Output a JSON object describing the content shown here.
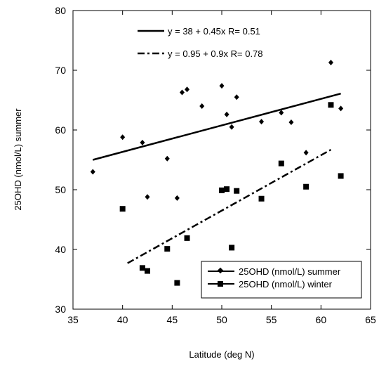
{
  "chart_data": {
    "type": "scatter",
    "xlabel": "Latitude (deg N)",
    "ylabel": "25OHD (nmol/L) summer",
    "xlim": [
      35,
      65
    ],
    "ylim": [
      30,
      80
    ],
    "xticks": [
      "35",
      "40",
      "45",
      "50",
      "55",
      "60",
      "65"
    ],
    "yticks": [
      "30",
      "40",
      "50",
      "60",
      "70",
      "80"
    ],
    "grid": false,
    "series": [
      {
        "name": "25OHD (nmol/L) summer",
        "marker": "diamond",
        "color": "#000000",
        "points": [
          [
            37,
            53.0
          ],
          [
            40,
            58.8
          ],
          [
            42,
            57.9
          ],
          [
            42.5,
            48.8
          ],
          [
            44.5,
            55.2
          ],
          [
            45.5,
            48.6
          ],
          [
            46,
            66.3
          ],
          [
            46.5,
            66.8
          ],
          [
            48,
            64.0
          ],
          [
            50,
            67.4
          ],
          [
            50.5,
            62.6
          ],
          [
            51,
            60.5
          ],
          [
            51.5,
            65.5
          ],
          [
            54,
            61.4
          ],
          [
            56,
            62.9
          ],
          [
            57,
            61.3
          ],
          [
            58.5,
            56.2
          ],
          [
            61,
            71.3
          ],
          [
            62,
            63.6
          ]
        ]
      },
      {
        "name": "25OHD (nmol/L) winter",
        "marker": "square",
        "color": "#000000",
        "points": [
          [
            40,
            46.8
          ],
          [
            42,
            36.9
          ],
          [
            42.5,
            36.4
          ],
          [
            44.5,
            40.1
          ],
          [
            45.5,
            34.4
          ],
          [
            46.5,
            41.9
          ],
          [
            50,
            49.9
          ],
          [
            50.5,
            50.1
          ],
          [
            51,
            40.3
          ],
          [
            51.5,
            49.8
          ],
          [
            54,
            48.5
          ],
          [
            56,
            54.4
          ],
          [
            58.5,
            50.5
          ],
          [
            61,
            64.2
          ],
          [
            62,
            52.3
          ]
        ]
      }
    ],
    "trendlines": [
      {
        "series": "summer",
        "style": "solid",
        "x_range": [
          37,
          62
        ],
        "y_start": 55.0,
        "y_end": 66.1
      },
      {
        "series": "winter",
        "style": "dash-dot",
        "x_range": [
          40.5,
          61
        ],
        "y_start": 37.7,
        "y_end": 56.7
      }
    ],
    "annotations": [
      {
        "text": "y = 38 + 0.45x   R= 0.51",
        "line_style": "solid"
      },
      {
        "text": "y = 0.95 + 0.9x   R= 0.78",
        "line_style": "dash-dot"
      }
    ],
    "legend": {
      "placement": "bottom-right",
      "entries": [
        {
          "label": "25OHD (nmol/L) summer",
          "marker": "diamond",
          "line_style": "solid"
        },
        {
          "label": "25OHD (nmol/L) winter",
          "marker": "square",
          "line_style": "solid"
        }
      ]
    }
  }
}
